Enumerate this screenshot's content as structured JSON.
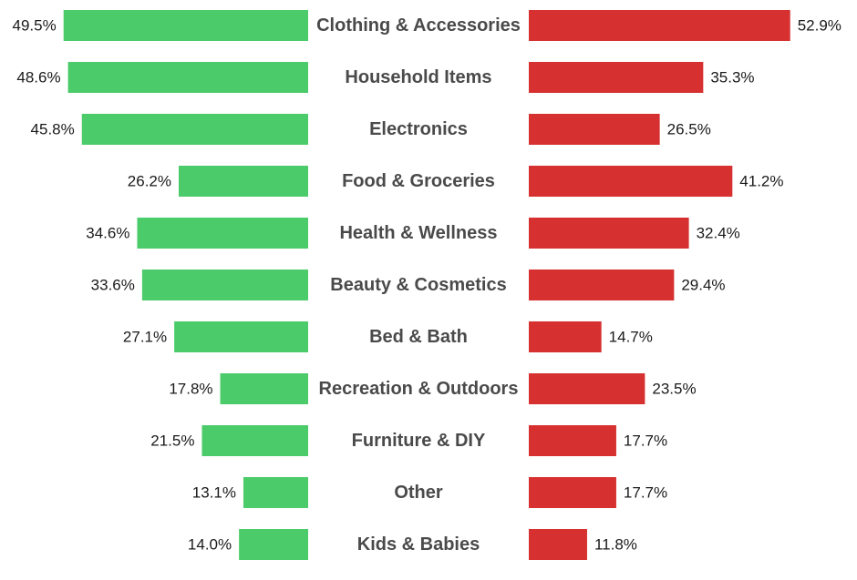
{
  "chart_data": {
    "type": "bar",
    "layout": "diverging-butterfly",
    "orientation": "horizontal",
    "value_suffix": "%",
    "grid": false,
    "legend": "none",
    "xlim": [
      0,
      60
    ],
    "categories": [
      "Clothing & Accessories",
      "Household Items",
      "Electronics",
      "Food & Groceries",
      "Health & Wellness",
      "Beauty & Cosmetics",
      "Bed & Bath",
      "Recreation & Outdoors",
      "Furniture & DIY",
      "Other",
      "Kids & Babies"
    ],
    "series": [
      {
        "side": "left",
        "color": "#4ccb6a",
        "values": [
          49.5,
          48.6,
          45.8,
          26.2,
          34.6,
          33.6,
          27.1,
          17.8,
          21.5,
          13.1,
          14.0
        ],
        "labels": [
          "49.5%",
          "48.6%",
          "45.8%",
          "26.2%",
          "34.6%",
          "33.6%",
          "27.1%",
          "17.8%",
          "21.5%",
          "13.1%",
          "14.0%"
        ]
      },
      {
        "side": "right",
        "color": "#d63030",
        "values": [
          52.9,
          35.3,
          26.5,
          41.2,
          32.4,
          29.4,
          14.7,
          23.5,
          17.7,
          17.7,
          11.8
        ],
        "labels": [
          "52.9%",
          "35.3%",
          "26.5%",
          "41.2%",
          "32.4%",
          "29.4%",
          "14.7%",
          "23.5%",
          "17.7%",
          "17.7%",
          "11.8%"
        ]
      }
    ],
    "colors": {
      "category_text": "#4a4a4a",
      "value_text": "#1a1a1a"
    }
  }
}
